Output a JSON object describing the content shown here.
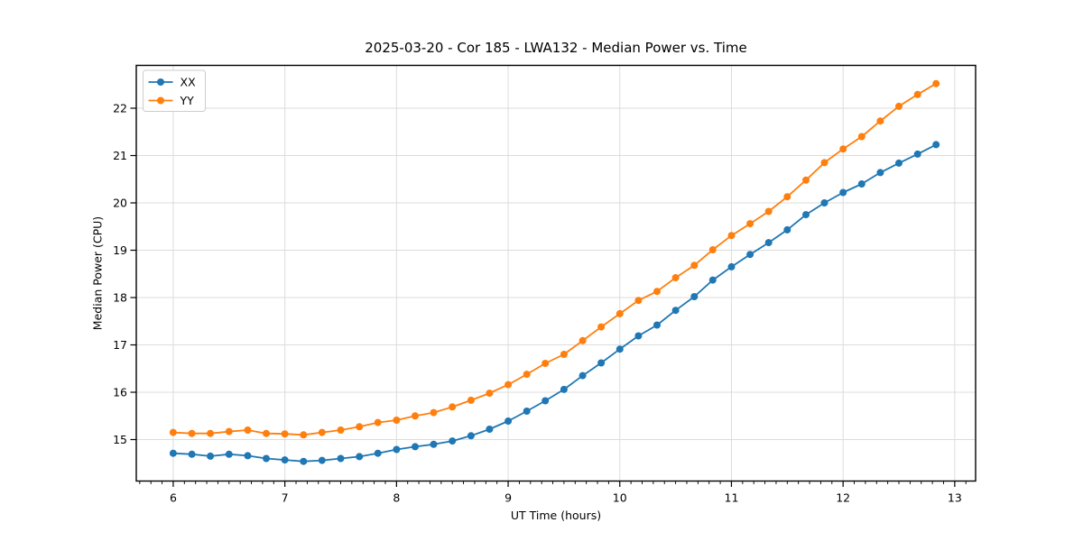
{
  "chart_data": {
    "type": "line",
    "title": "2025-03-20 - Cor 185 - LWA132 - Median Power vs. Time",
    "xlabel": "UT Time (hours)",
    "ylabel": "Median Power (CPU)",
    "grid": "major",
    "legend_position": "upper-left",
    "xlim": [
      5.669,
      13.187
    ],
    "ylim": [
      14.124,
      22.905
    ],
    "xticks": [
      6,
      7,
      8,
      9,
      10,
      11,
      12,
      13
    ],
    "yticks": [
      15,
      16,
      17,
      18,
      19,
      20,
      21,
      22
    ],
    "x_minor_tick_step": 0.1,
    "x": [
      6.0,
      6.167,
      6.333,
      6.5,
      6.667,
      6.833,
      7.0,
      7.167,
      7.333,
      7.5,
      7.667,
      7.833,
      8.0,
      8.167,
      8.333,
      8.5,
      8.667,
      8.833,
      9.0,
      9.167,
      9.333,
      9.5,
      9.667,
      9.833,
      10.0,
      10.167,
      10.333,
      10.5,
      10.667,
      10.833,
      11.0,
      11.167,
      11.333,
      11.5,
      11.667,
      11.833,
      12.0,
      12.167,
      12.333,
      12.5,
      12.667,
      12.833
    ],
    "series": [
      {
        "name": "XX",
        "color": "#1f77b4",
        "values": [
          14.71,
          14.69,
          14.65,
          14.69,
          14.66,
          14.6,
          14.57,
          14.54,
          14.56,
          14.6,
          14.64,
          14.71,
          14.79,
          14.85,
          14.9,
          14.97,
          15.08,
          15.22,
          15.39,
          15.6,
          15.82,
          16.06,
          16.35,
          16.62,
          16.91,
          17.19,
          17.42,
          17.73,
          18.02,
          18.37,
          18.65,
          18.91,
          19.16,
          19.43,
          19.75,
          20.0,
          20.22,
          20.4,
          20.64,
          20.84,
          21.03,
          21.23
        ]
      },
      {
        "name": "YY",
        "color": "#ff7f0e",
        "values": [
          15.15,
          15.13,
          15.13,
          15.17,
          15.2,
          15.13,
          15.12,
          15.1,
          15.15,
          15.2,
          15.27,
          15.36,
          15.41,
          15.5,
          15.57,
          15.69,
          15.83,
          15.98,
          16.16,
          16.38,
          16.61,
          16.8,
          17.09,
          17.38,
          17.66,
          17.94,
          18.13,
          18.42,
          18.68,
          19.01,
          19.31,
          19.56,
          19.82,
          20.13,
          20.48,
          20.85,
          21.14,
          21.4,
          21.73,
          22.04,
          22.29,
          22.52
        ]
      }
    ],
    "style": {
      "grid_color": "#dcdcdc",
      "spine_color": "#000000",
      "tick_label_color": "#000000",
      "legend_border_color": "#cccccc",
      "background_color": "#ffffff"
    }
  }
}
